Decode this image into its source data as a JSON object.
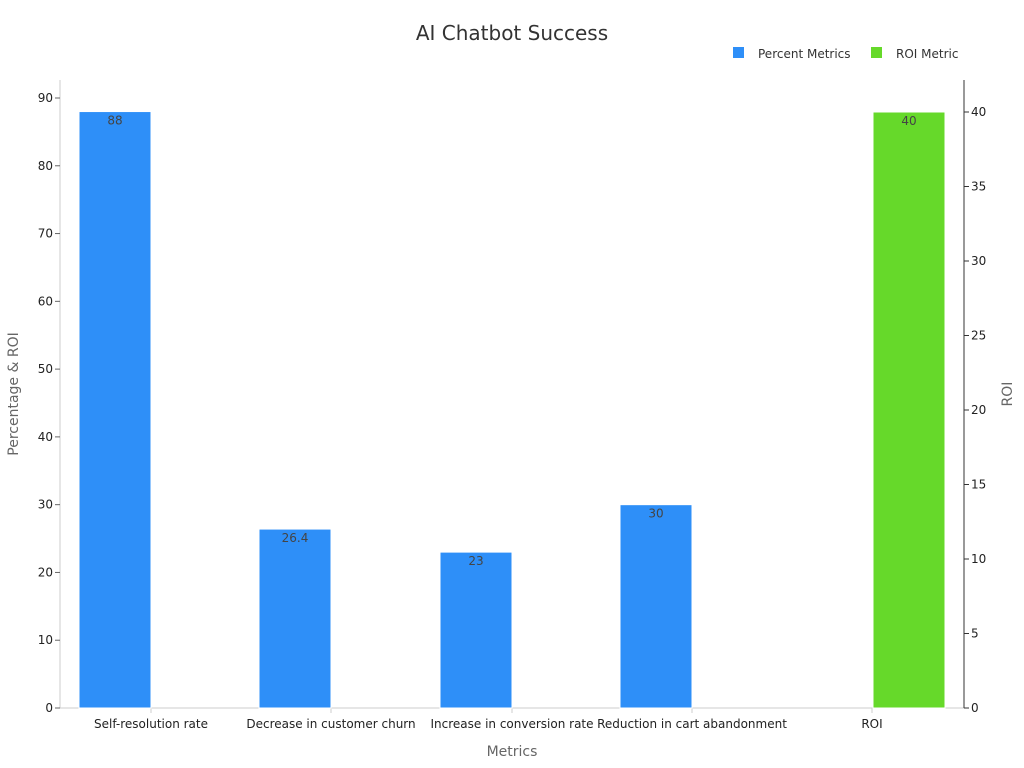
{
  "chart_data": {
    "type": "bar",
    "title": "AI Chatbot Success",
    "xlabel": "Metrics",
    "ylabel": "Percentage & ROI",
    "y2label": "ROI",
    "categories": [
      "Self-resolution rate",
      "Decrease in customer churn",
      "Increase in conversion rate",
      "Reduction in cart abandonment",
      "ROI"
    ],
    "ylim": [
      0,
      90
    ],
    "y2lim": [
      0,
      40
    ],
    "yticks": [
      "0",
      "10",
      "20",
      "30",
      "40",
      "50",
      "60",
      "70",
      "80",
      "90"
    ],
    "y2ticks": [
      "0",
      "5",
      "10",
      "15",
      "20",
      "25",
      "30",
      "35",
      "40"
    ],
    "legend_position": "top-right",
    "grid": false,
    "series": [
      {
        "name": "Percent Metrics",
        "axis": "left",
        "color": "#2e8ff8",
        "values": [
          88,
          26.4,
          23,
          30,
          null
        ],
        "labels": [
          "88",
          "26.4",
          "23",
          "30",
          ""
        ]
      },
      {
        "name": "ROI Metric",
        "axis": "right",
        "color": "#66d92a",
        "values": [
          null,
          null,
          null,
          null,
          40
        ],
        "labels": [
          "",
          "",
          "",
          "",
          "40"
        ]
      }
    ]
  }
}
